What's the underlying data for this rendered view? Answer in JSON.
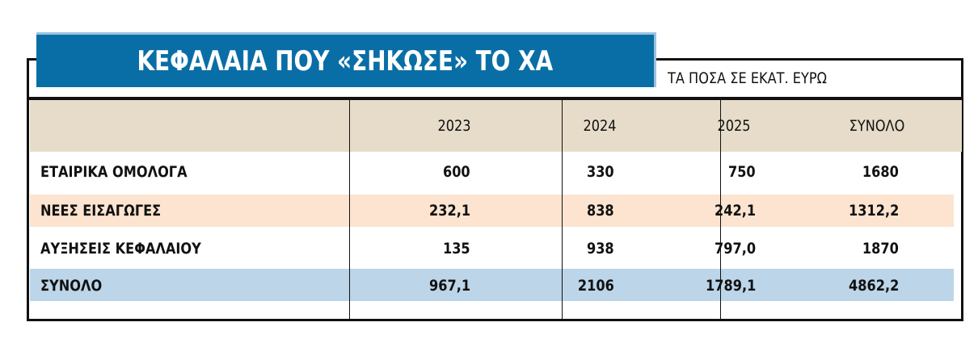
{
  "header": {
    "title": "ΚΕΦΑΛΑΙΑ ΠΟΥ «ΣΗΚΩΣΕ» ΤΟ ΧΑ",
    "subtitle": "ΤΑ ΠΟΣΑ ΣΕ ΕΚΑΤ. ΕΥΡΩ"
  },
  "table": {
    "columns": [
      "2023",
      "2024",
      "2025",
      "ΣΥΝΟΛΟ"
    ],
    "rows": [
      [
        "ΕΤΑΙΡΙΚΑ ΟΜΟΛΟΓΑ",
        "600",
        "330",
        "750",
        "1680"
      ],
      [
        "ΝΕΕΣ ΕΙΣΑΓΩΓΕΣ",
        "232,1",
        "838",
        "242,1",
        "1312,2"
      ],
      [
        "ΑΥΞΗΣΕΙΣ ΚΕΦΑΛΑΙΟΥ",
        "135",
        "938",
        "797,0",
        "1870"
      ],
      [
        "ΣΥΝΟΛΟ",
        "967,1",
        "2106",
        "1789,1",
        "4862,2"
      ]
    ]
  }
}
